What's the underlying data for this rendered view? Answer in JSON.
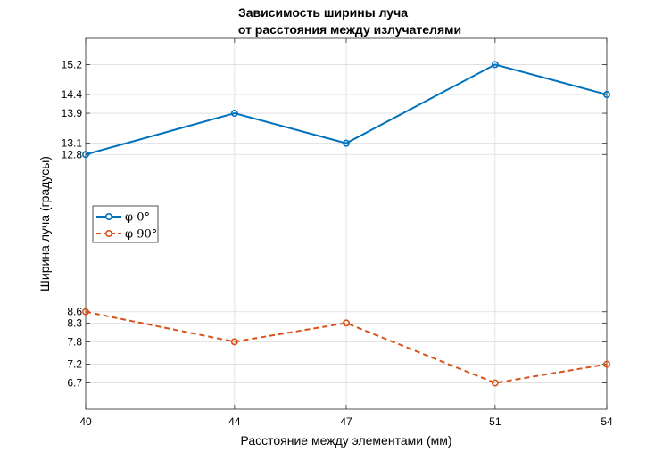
{
  "chart_data": {
    "type": "line",
    "title_lines": [
      "Зависимость ширины луча",
      "от расстояния между излучателями"
    ],
    "xlabel": "Расстояние между элементами (мм)",
    "ylabel": "Ширина луча (градусы)",
    "x": [
      40,
      44,
      47,
      51,
      54
    ],
    "xticks": [
      "40",
      "44",
      "47",
      "51",
      "54"
    ],
    "xlim": [
      40,
      54
    ],
    "ylim": [
      6.0,
      15.9
    ],
    "yticks": [
      "6.7",
      "7.2",
      "7.8",
      "8.3",
      "8.6",
      "12.8",
      "13.1",
      "13.9",
      "14.4",
      "15.2"
    ],
    "grid": true,
    "legend_position": "left-middle",
    "series": [
      {
        "name": "φ 0°",
        "values": [
          12.8,
          13.9,
          13.1,
          15.2,
          14.4
        ],
        "color": "#0072BD",
        "line_style": "solid",
        "marker": "circle"
      },
      {
        "name": "φ 90°",
        "values": [
          8.6,
          7.8,
          8.3,
          6.7,
          7.2
        ],
        "color": "#D95319",
        "line_style": "dashed",
        "marker": "circle"
      }
    ]
  }
}
